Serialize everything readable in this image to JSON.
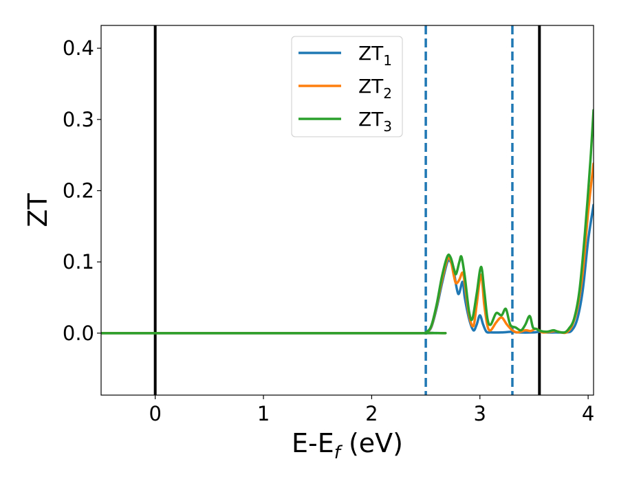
{
  "chart_data": {
    "type": "line",
    "xlabel": "E-E",
    "xlabel_sub": "f",
    "xlabel_unit": " (eV)",
    "ylabel": "ZT",
    "xlim": [
      -0.5,
      4.05
    ],
    "ylim": [
      -0.087,
      0.432
    ],
    "xticks": [
      0,
      1,
      2,
      3,
      4
    ],
    "xtick_labels": [
      "0",
      "1",
      "2",
      "3",
      "4"
    ],
    "yticks": [
      0.0,
      0.1,
      0.2,
      0.3,
      0.4
    ],
    "ytick_labels": [
      "0.0",
      "0.1",
      "0.2",
      "0.3",
      "0.4"
    ],
    "grid": false,
    "legend_position": "top-center",
    "vlines": [
      {
        "x": 0.0,
        "style": "solid",
        "color": "#000000"
      },
      {
        "x": 3.55,
        "style": "solid",
        "color": "#000000"
      },
      {
        "x": 2.5,
        "style": "dashed",
        "color": "#1f77b4"
      },
      {
        "x": 3.3,
        "style": "dashed",
        "color": "#1f77b4"
      }
    ],
    "series": [
      {
        "name": "ZT",
        "name_sub": "1",
        "color": "#1f77b4",
        "points": [
          [
            -0.5,
            0
          ],
          [
            2.45,
            0
          ],
          [
            2.5,
            0.001
          ],
          [
            2.55,
            0.008
          ],
          [
            2.6,
            0.035
          ],
          [
            2.65,
            0.07
          ],
          [
            2.7,
            0.1
          ],
          [
            2.73,
            0.1
          ],
          [
            2.76,
            0.085
          ],
          [
            2.8,
            0.055
          ],
          [
            2.84,
            0.072
          ],
          [
            2.86,
            0.05
          ],
          [
            2.9,
            0.02
          ],
          [
            2.94,
            0.004
          ],
          [
            2.97,
            0.012
          ],
          [
            3.0,
            0.025
          ],
          [
            3.03,
            0.012
          ],
          [
            3.06,
            0.002
          ],
          [
            3.1,
            0.001
          ],
          [
            3.2,
            0.001
          ],
          [
            3.3,
            0.002
          ],
          [
            3.35,
            0.001
          ],
          [
            3.5,
            0.001
          ],
          [
            3.55,
            0.002
          ],
          [
            3.6,
            0.001
          ],
          [
            3.7,
            0.001
          ],
          [
            3.8,
            0.001
          ],
          [
            3.85,
            0.004
          ],
          [
            3.9,
            0.02
          ],
          [
            3.95,
            0.06
          ],
          [
            4.0,
            0.13
          ],
          [
            4.05,
            0.18
          ]
        ]
      },
      {
        "name": "ZT",
        "name_sub": "2",
        "color": "#ff7f0e",
        "points": [
          [
            -0.5,
            0
          ],
          [
            2.45,
            0
          ],
          [
            2.5,
            0.001
          ],
          [
            2.55,
            0.009
          ],
          [
            2.6,
            0.038
          ],
          [
            2.65,
            0.075
          ],
          [
            2.7,
            0.104
          ],
          [
            2.73,
            0.102
          ],
          [
            2.76,
            0.08
          ],
          [
            2.78,
            0.07
          ],
          [
            2.81,
            0.075
          ],
          [
            2.84,
            0.085
          ],
          [
            2.86,
            0.07
          ],
          [
            2.9,
            0.025
          ],
          [
            2.94,
            0.01
          ],
          [
            2.97,
            0.04
          ],
          [
            3.01,
            0.082
          ],
          [
            3.04,
            0.04
          ],
          [
            3.07,
            0.01
          ],
          [
            3.1,
            0.004
          ],
          [
            3.15,
            0.015
          ],
          [
            3.2,
            0.022
          ],
          [
            3.25,
            0.012
          ],
          [
            3.3,
            0.004
          ],
          [
            3.35,
            0.001
          ],
          [
            3.42,
            0.004
          ],
          [
            3.47,
            0.003
          ],
          [
            3.52,
            0.006
          ],
          [
            3.58,
            0.001
          ],
          [
            3.65,
            0.002
          ],
          [
            3.7,
            0.003
          ],
          [
            3.75,
            0.001
          ],
          [
            3.8,
            0.001
          ],
          [
            3.85,
            0.01
          ],
          [
            3.9,
            0.035
          ],
          [
            3.95,
            0.085
          ],
          [
            4.0,
            0.17
          ],
          [
            4.05,
            0.238
          ]
        ]
      },
      {
        "name": "ZT",
        "name_sub": "3",
        "color": "#2ca02c",
        "points": [
          [
            -0.5,
            0
          ],
          [
            2.45,
            0
          ],
          [
            2.5,
            0.001
          ],
          [
            2.55,
            0.01
          ],
          [
            2.6,
            0.04
          ],
          [
            2.65,
            0.08
          ],
          [
            2.7,
            0.108
          ],
          [
            2.73,
            0.106
          ],
          [
            2.76,
            0.09
          ],
          [
            2.78,
            0.083
          ],
          [
            2.81,
            0.1
          ],
          [
            2.83,
            0.107
          ],
          [
            2.86,
            0.08
          ],
          [
            2.9,
            0.03
          ],
          [
            2.93,
            0.02
          ],
          [
            2.97,
            0.055
          ],
          [
            3.01,
            0.093
          ],
          [
            3.04,
            0.06
          ],
          [
            3.07,
            0.02
          ],
          [
            3.1,
            0.012
          ],
          [
            3.15,
            0.028
          ],
          [
            3.2,
            0.025
          ],
          [
            3.24,
            0.034
          ],
          [
            3.28,
            0.012
          ],
          [
            3.33,
            0.008
          ],
          [
            3.38,
            0.004
          ],
          [
            3.42,
            0.012
          ],
          [
            3.46,
            0.024
          ],
          [
            3.49,
            0.008
          ],
          [
            3.52,
            0.006
          ],
          [
            3.56,
            0.003
          ],
          [
            3.62,
            0.002
          ],
          [
            3.68,
            0.004
          ],
          [
            3.72,
            0.002
          ],
          [
            3.78,
            0.001
          ],
          [
            3.82,
            0.006
          ],
          [
            3.87,
            0.02
          ],
          [
            3.92,
            0.06
          ],
          [
            3.97,
            0.14
          ],
          [
            4.02,
            0.24
          ],
          [
            4.05,
            0.313
          ]
        ]
      }
    ]
  }
}
